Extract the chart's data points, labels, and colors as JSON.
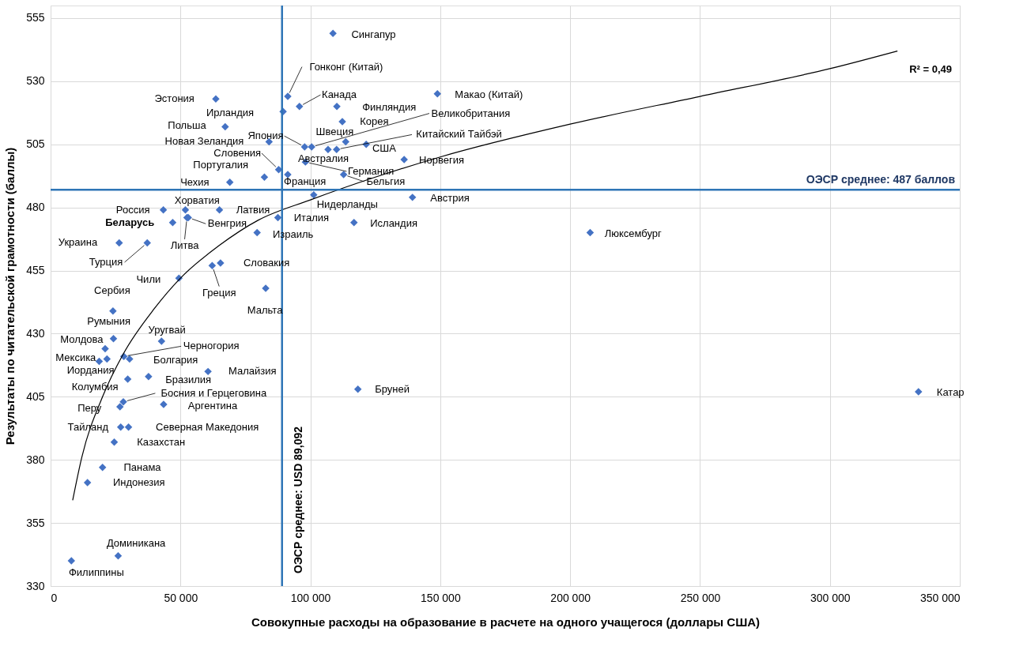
{
  "chart_data": {
    "type": "scatter",
    "xlabel": "Совокупные расходы на образование в расчете на одного учащегося (доллары США)",
    "ylabel": "Результаты по читательской грамотности (баллы)",
    "xlim": [
      0,
      350000
    ],
    "xticks": [
      {
        "value": 0,
        "label": "0"
      },
      {
        "value": 50000,
        "label": "50 000"
      },
      {
        "value": 100000,
        "label": "100 000"
      },
      {
        "value": 150000,
        "label": "150 000"
      },
      {
        "value": 200000,
        "label": "200 000"
      },
      {
        "value": 250000,
        "label": "250 000"
      },
      {
        "value": 300000,
        "label": "300 000"
      },
      {
        "value": 350000,
        "label": "350 000"
      }
    ],
    "ylim": [
      330,
      560
    ],
    "yticks": [
      330,
      355,
      380,
      405,
      430,
      455,
      480,
      505,
      530,
      555
    ],
    "grid": true,
    "series": [
      {
        "color": "#4472c4",
        "marker": "diamond",
        "x": [
          108700,
          91300,
          95800,
          63600,
          89500,
          110200,
          148900,
          112300,
          67200,
          84100,
          97800,
          100500,
          106800,
          110100,
          113600,
          121500,
          136100,
          98100,
          112800,
          91300,
          87800,
          82300,
          69000,
          101300,
          139300,
          87500,
          116800,
          79500,
          207700,
          65000,
          51900,
          53000,
          52500,
          43400,
          47000,
          26400,
          37200,
          65400,
          62200,
          49400,
          82800,
          24000,
          24200,
          21000,
          21700,
          18700,
          42700,
          28200,
          30400,
          60600,
          37700,
          29700,
          118300,
          334100,
          28000,
          43500,
          26700,
          27000,
          30000,
          24500,
          20000,
          14200,
          26000,
          8000
        ],
        "values": [
          549,
          524,
          520,
          523,
          518,
          520,
          525,
          514,
          512,
          506,
          504,
          504,
          503,
          503,
          506,
          505,
          499,
          498,
          493,
          493,
          495,
          492,
          490,
          485,
          484,
          476,
          474,
          470,
          470,
          479,
          479,
          476,
          476,
          479,
          474,
          466,
          466,
          458,
          457,
          452,
          448,
          439,
          428,
          424,
          420,
          419,
          427,
          421,
          420,
          415,
          413,
          412,
          408,
          407,
          403,
          402,
          401,
          393,
          393,
          387,
          377,
          371,
          342,
          340
        ]
      },
      {
        "type": "line",
        "color": "#000000",
        "x": [
          8500,
          12000,
          20000,
          28000,
          40000,
          50000,
          65000,
          80000,
          100000,
          125000,
          150000,
          200000,
          250000,
          300000,
          326000
        ],
        "values": [
          364,
          381,
          405,
          422,
          440,
          452,
          465,
          475,
          483,
          492,
          500,
          513,
          524,
          535,
          542
        ]
      }
    ],
    "ref_lines": [
      {
        "axis": "y",
        "value": 487,
        "label": "ОЭСР среднее: 487 баллов",
        "color": "#2e75b6"
      },
      {
        "axis": "x",
        "value": 89092,
        "label": "ОЭСР среднее: USD 89,092",
        "color": "#2e75b6"
      }
    ],
    "annotations": [
      "R² = 0,49",
      {
        "text": "Сингапур",
        "x": 108700,
        "y": 549
      },
      {
        "text": "Гонконг (Китай)",
        "x": 91300,
        "y": 524
      },
      {
        "text": "Канада",
        "x": 95800,
        "y": 520
      },
      {
        "text": "Эстония",
        "x": 63600,
        "y": 523
      },
      {
        "text": "Ирландия",
        "x": 89500,
        "y": 518
      },
      {
        "text": "Финляндия",
        "x": 110200,
        "y": 520
      },
      {
        "text": "Макао (Китай)",
        "x": 148900,
        "y": 525
      },
      {
        "text": "Корея",
        "x": 112300,
        "y": 514
      },
      {
        "text": "Польша",
        "x": 67200,
        "y": 512
      },
      {
        "text": "Новая Зеландия",
        "x": 84100,
        "y": 506
      },
      {
        "text": "Япония",
        "x": 97800,
        "y": 504
      },
      {
        "text": "Великобритания",
        "x": 100500,
        "y": 504
      },
      {
        "text": "Австралия",
        "x": 106800,
        "y": 503
      },
      {
        "text": "Китайский Тайбэй",
        "x": 110100,
        "y": 503
      },
      {
        "text": "Швеция",
        "x": 113600,
        "y": 506
      },
      {
        "text": "США",
        "x": 121500,
        "y": 505
      },
      {
        "text": "Норвегия",
        "x": 136100,
        "y": 499
      },
      {
        "text": "Германия",
        "x": 98100,
        "y": 498
      },
      {
        "text": "Бельгия",
        "x": 112800,
        "y": 493
      },
      {
        "text": "Франция",
        "x": 91300,
        "y": 493
      },
      {
        "text": "Словения",
        "x": 87800,
        "y": 495
      },
      {
        "text": "Португалия",
        "x": 82300,
        "y": 492
      },
      {
        "text": "Чехия",
        "x": 69000,
        "y": 490
      },
      {
        "text": "Нидерланды",
        "x": 101300,
        "y": 485
      },
      {
        "text": "Австрия",
        "x": 139300,
        "y": 484
      },
      {
        "text": "Италия",
        "x": 87500,
        "y": 476
      },
      {
        "text": "Исландия",
        "x": 116800,
        "y": 474
      },
      {
        "text": "Израиль",
        "x": 79500,
        "y": 470
      },
      {
        "text": "Люксембург",
        "x": 207700,
        "y": 470
      },
      {
        "text": "Латвия",
        "x": 65000,
        "y": 479
      },
      {
        "text": "Хорватия",
        "x": 51900,
        "y": 479
      },
      {
        "text": "Венгрия",
        "x": 53000,
        "y": 476
      },
      {
        "text": "Литва",
        "x": 52500,
        "y": 476
      },
      {
        "text": "Россия",
        "x": 43400,
        "y": 479
      },
      {
        "text": "Беларусь",
        "x": 47000,
        "y": 474
      },
      {
        "text": "Украина",
        "x": 26400,
        "y": 466
      },
      {
        "text": "Турция",
        "x": 37200,
        "y": 466
      },
      {
        "text": "Словакия",
        "x": 65400,
        "y": 458
      },
      {
        "text": "Греция",
        "x": 62200,
        "y": 457
      },
      {
        "text": "Чили",
        "x": 49400,
        "y": 452
      },
      {
        "text": "Мальта",
        "x": 82800,
        "y": 448
      },
      {
        "text": "Сербия",
        "x": 24000,
        "y": 439
      },
      {
        "text": "Румыния",
        "x": 24200,
        "y": 428
      },
      {
        "text": "Молдова",
        "x": 21000,
        "y": 424
      },
      {
        "text": "Мексика",
        "x": 21700,
        "y": 420
      },
      {
        "text": "Иордания",
        "x": 18700,
        "y": 419
      },
      {
        "text": "Уругвай",
        "x": 42700,
        "y": 427
      },
      {
        "text": "Черногория",
        "x": 28200,
        "y": 421
      },
      {
        "text": "Болгария",
        "x": 30400,
        "y": 420
      },
      {
        "text": "Малайзия",
        "x": 60600,
        "y": 415
      },
      {
        "text": "Бразилия",
        "x": 37700,
        "y": 413
      },
      {
        "text": "Колумбия",
        "x": 29700,
        "y": 412
      },
      {
        "text": "Бруней",
        "x": 118300,
        "y": 408
      },
      {
        "text": "Катар",
        "x": 334100,
        "y": 407
      },
      {
        "text": "Босния и Герцеговина",
        "x": 28000,
        "y": 403
      },
      {
        "text": "Аргентина",
        "x": 43500,
        "y": 402
      },
      {
        "text": "Перу",
        "x": 26700,
        "y": 401
      },
      {
        "text": "Тайланд",
        "x": 27000,
        "y": 393
      },
      {
        "text": "Северная Македония",
        "x": 30000,
        "y": 393
      },
      {
        "text": "Казахстан",
        "x": 24500,
        "y": 387
      },
      {
        "text": "Панама",
        "x": 20000,
        "y": 377
      },
      {
        "text": "Индонезия",
        "x": 14200,
        "y": 371
      },
      {
        "text": "Доминикана",
        "x": 26000,
        "y": 342
      },
      {
        "text": "Филиппины",
        "x": 8000,
        "y": 340
      }
    ]
  }
}
